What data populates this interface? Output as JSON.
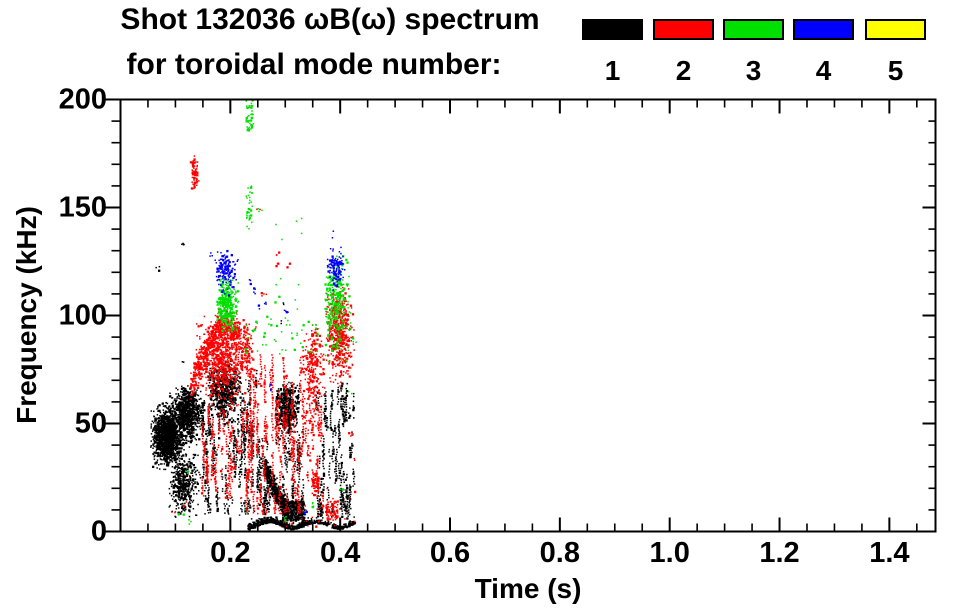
{
  "chart_data": {
    "type": "scatter",
    "title_line1": "Shot 132036 ωB(ω) spectrum",
    "title_line2": "for toroidal mode number:",
    "xlabel": "Time (s)",
    "ylabel": "Frequency (kHz)",
    "x_range": [
      0,
      1.484
    ],
    "y_range": [
      0,
      200
    ],
    "x_major_ticks": [
      0.2,
      0.4,
      0.6,
      0.8,
      1.0,
      1.2,
      1.4
    ],
    "x_tick_labels": [
      "0.2",
      "0.4",
      "0.6",
      "0.8",
      "1.0",
      "1.2",
      "1.4"
    ],
    "x_minor_step": 0.05,
    "y_major_ticks": [
      0,
      50,
      100,
      150,
      200
    ],
    "y_tick_labels": [
      "0",
      "50",
      "100",
      "150",
      "200"
    ],
    "y_minor_step": 10,
    "grid": false,
    "background": "#ffffff",
    "frame_color": "#000000",
    "legend": {
      "position": "top-right",
      "labels": [
        "1",
        "2",
        "3",
        "4",
        "5"
      ],
      "colors": [
        "#000000",
        "#ff0000",
        "#00e000",
        "#0000ff",
        "#ffff00"
      ]
    },
    "mode_colors": {
      "1": "#000000",
      "2": "#ff0000",
      "3": "#00e000",
      "4": "#0000ff",
      "5": "#ffff00"
    },
    "clusters": [
      {
        "mode": 1,
        "shape": "gauss",
        "n": 1400,
        "center": [
          0.085,
          44
        ],
        "sd": [
          0.013,
          6
        ],
        "t": [
          0.055,
          0.122
        ],
        "f": [
          28,
          60
        ]
      },
      {
        "mode": 1,
        "shape": "gauss",
        "n": 800,
        "center": [
          0.122,
          55
        ],
        "sd": [
          0.013,
          6
        ],
        "t": [
          0.09,
          0.152
        ],
        "f": [
          38,
          68
        ]
      },
      {
        "mode": 1,
        "shape": "gauss",
        "n": 450,
        "center": [
          0.115,
          22
        ],
        "sd": [
          0.011,
          7
        ],
        "t": [
          0.088,
          0.148
        ],
        "f": [
          6,
          36
        ]
      },
      {
        "mode": 1,
        "shape": "streaks",
        "cols": 46,
        "t": [
          0.148,
          0.272
        ],
        "f": [
          8,
          76
        ],
        "seg": [
          3,
          16
        ]
      },
      {
        "mode": 1,
        "shape": "gauss",
        "n": 550,
        "center": [
          0.187,
          65
        ],
        "sd": [
          0.015,
          7
        ],
        "t": [
          0.158,
          0.225
        ],
        "f": [
          48,
          79
        ]
      },
      {
        "mode": 1,
        "shape": "chirp",
        "n": 550,
        "t": [
          0.262,
          0.305
        ],
        "f_start": 30,
        "f_end": 10,
        "spread": 2.5
      },
      {
        "mode": 1,
        "shape": "uniform",
        "n": 380,
        "t": [
          0.295,
          0.335
        ],
        "f": [
          5,
          14
        ]
      },
      {
        "mode": 1,
        "shape": "band",
        "n": 520,
        "t": [
          0.232,
          0.345
        ],
        "f_base": 3,
        "amp": 1.6,
        "spread": 1.2
      },
      {
        "mode": 1,
        "shape": "band",
        "n": 170,
        "t": [
          0.345,
          0.428
        ],
        "f_base": 3,
        "amp": 1.4,
        "spread": 1.0
      },
      {
        "mode": 1,
        "shape": "gauss",
        "n": 450,
        "center": [
          0.303,
          57
        ],
        "sd": [
          0.011,
          6
        ],
        "t": [
          0.283,
          0.327
        ],
        "f": [
          45,
          69
        ]
      },
      {
        "mode": 1,
        "shape": "streaks",
        "cols": 14,
        "t": [
          0.283,
          0.335
        ],
        "f": [
          12,
          48
        ],
        "seg": [
          3,
          12
        ]
      },
      {
        "mode": 1,
        "shape": "streaks",
        "cols": 28,
        "t": [
          0.356,
          0.428
        ],
        "f": [
          6,
          70
        ],
        "seg": [
          4,
          18
        ]
      },
      {
        "mode": 1,
        "shape": "points",
        "pts": [
          [
            0.069,
            122
          ],
          [
            0.114,
            133
          ],
          [
            0.297,
            106
          ],
          [
            0.294,
            96
          ],
          [
            0.112,
            78
          ]
        ]
      },
      {
        "mode": 2,
        "shape": "gauss",
        "n": 80,
        "center": [
          0.135,
          165
        ],
        "sd": [
          0.003,
          5
        ],
        "t": [
          0.128,
          0.143
        ],
        "f": [
          158,
          174
        ]
      },
      {
        "mode": 2,
        "shape": "ridge",
        "n": 500,
        "pts": [
          [
            0.128,
            68
          ],
          [
            0.178,
            95
          ],
          [
            0.218,
            92
          ]
        ],
        "spread": 3.5
      },
      {
        "mode": 2,
        "shape": "gauss",
        "n": 650,
        "center": [
          0.185,
          80
        ],
        "sd": [
          0.02,
          9
        ],
        "t": [
          0.135,
          0.235
        ],
        "f": [
          55,
          100
        ]
      },
      {
        "mode": 2,
        "shape": "gauss",
        "n": 150,
        "center": [
          0.228,
          84
        ],
        "sd": [
          0.008,
          7
        ],
        "t": [
          0.208,
          0.252
        ],
        "f": [
          70,
          98
        ]
      },
      {
        "mode": 2,
        "shape": "streaks",
        "cols": 20,
        "t": [
          0.148,
          0.225
        ],
        "f": [
          15,
          62
        ],
        "seg": [
          3,
          12
        ]
      },
      {
        "mode": 2,
        "shape": "streaks",
        "cols": 32,
        "t": [
          0.228,
          0.335
        ],
        "f": [
          8,
          82
        ],
        "seg": [
          6,
          26
        ]
      },
      {
        "mode": 2,
        "shape": "gauss",
        "n": 280,
        "center": [
          0.35,
          73
        ],
        "sd": [
          0.01,
          12
        ],
        "t": [
          0.33,
          0.372
        ],
        "f": [
          45,
          96
        ]
      },
      {
        "mode": 2,
        "shape": "streaks",
        "cols": 9,
        "t": [
          0.335,
          0.372
        ],
        "f": [
          10,
          60
        ],
        "seg": [
          4,
          14
        ]
      },
      {
        "mode": 2,
        "shape": "gauss",
        "n": 520,
        "center": [
          0.398,
          92
        ],
        "sd": [
          0.011,
          10
        ],
        "t": [
          0.374,
          0.427
        ],
        "f": [
          60,
          114
        ]
      },
      {
        "mode": 2,
        "shape": "uniform",
        "n": 60,
        "t": [
          0.348,
          0.362
        ],
        "f": [
          16,
          27
        ]
      },
      {
        "mode": 2,
        "shape": "uniform",
        "n": 70,
        "t": [
          0.374,
          0.396
        ],
        "f": [
          5,
          14
        ]
      },
      {
        "mode": 2,
        "shape": "uniform",
        "n": 40,
        "t": [
          0.29,
          0.43
        ],
        "f": [
          2,
          20
        ]
      },
      {
        "mode": 2,
        "shape": "points",
        "pts": [
          [
            0.285,
            129
          ],
          [
            0.283,
            123
          ],
          [
            0.304,
            123
          ],
          [
            0.098,
            8
          ],
          [
            0.117,
            14
          ],
          [
            0.26,
            110
          ],
          [
            0.418,
            45
          ],
          [
            0.428,
            32
          ],
          [
            0.252,
            150
          ]
        ]
      },
      {
        "mode": 3,
        "shape": "gauss",
        "n": 330,
        "center": [
          0.194,
          105
        ],
        "sd": [
          0.009,
          6
        ],
        "t": [
          0.175,
          0.216
        ],
        "f": [
          92,
          118
        ]
      },
      {
        "mode": 3,
        "shape": "uniform",
        "n": 30,
        "t": [
          0.228,
          0.24
        ],
        "f": [
          140,
          160
        ]
      },
      {
        "mode": 3,
        "shape": "uniform",
        "n": 45,
        "t": [
          0.228,
          0.242
        ],
        "f": [
          185,
          200
        ]
      },
      {
        "mode": 3,
        "shape": "uniform",
        "n": 50,
        "t": [
          0.222,
          0.36
        ],
        "f": [
          82,
          100
        ]
      },
      {
        "mode": 3,
        "shape": "uniform",
        "n": 12,
        "t": [
          0.28,
          0.33
        ],
        "f": [
          100,
          148
        ]
      },
      {
        "mode": 3,
        "shape": "gauss",
        "n": 300,
        "center": [
          0.392,
          105
        ],
        "sd": [
          0.011,
          11
        ],
        "t": [
          0.372,
          0.42
        ],
        "f": [
          78,
          128
        ]
      },
      {
        "mode": 3,
        "shape": "points",
        "pts": [
          [
            0.107,
            8
          ],
          [
            0.125,
            4
          ],
          [
            0.23,
            10
          ],
          [
            0.3,
            6
          ],
          [
            0.35,
            12
          ],
          [
            0.405,
            20
          ],
          [
            0.418,
            64
          ],
          [
            0.122,
            28
          ],
          [
            0.425,
            88
          ],
          [
            0.252,
            149
          ]
        ]
      },
      {
        "mode": 4,
        "shape": "gauss",
        "n": 150,
        "center": [
          0.19,
          121
        ],
        "sd": [
          0.009,
          4.5
        ],
        "t": [
          0.172,
          0.22
        ],
        "f": [
          109,
          131
        ]
      },
      {
        "mode": 4,
        "shape": "gauss",
        "n": 120,
        "center": [
          0.393,
          122
        ],
        "sd": [
          0.008,
          4.5
        ],
        "t": [
          0.377,
          0.415
        ],
        "f": [
          111,
          132
        ]
      },
      {
        "mode": 4,
        "shape": "points",
        "pts": [
          [
            0.237,
            117
          ],
          [
            0.255,
            104
          ],
          [
            0.245,
            112
          ],
          [
            0.264,
            106
          ],
          [
            0.165,
            128
          ],
          [
            0.275,
            67
          ],
          [
            0.22,
            9
          ],
          [
            0.335,
            8
          ],
          [
            0.3,
            102
          ],
          [
            0.388,
            137
          ]
        ]
      }
    ]
  }
}
